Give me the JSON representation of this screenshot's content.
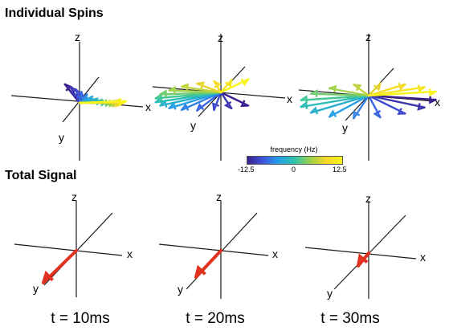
{
  "sections": {
    "spins_title": "Individual Spins",
    "total_title": "Total Signal"
  },
  "axes_labels": {
    "x": "x",
    "y": "y",
    "z": "z"
  },
  "colorbar": {
    "label": "frequency (Hz)",
    "min_label": "-12.5",
    "mid_label": "0",
    "max_label": "12.5",
    "colors": [
      "#3b1f8c",
      "#3e55e0",
      "#26a0e6",
      "#2fc4aa",
      "#9fd24a",
      "#f5d62a",
      "#f8f31b"
    ]
  },
  "signal_color": "#e0321e",
  "time_labels": [
    "t = 10ms",
    "t = 20ms",
    "t = 30ms"
  ]
}
